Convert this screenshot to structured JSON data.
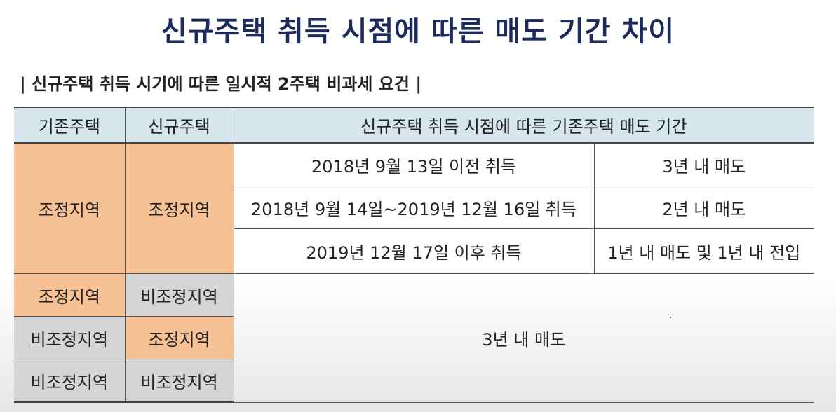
{
  "title": "신규주택 취득 시점에 따른 매도 기간 차이",
  "subtitle": "| 신규주택 취득 시기에 따른 일시적 2주택 비과세 요건 |",
  "table": {
    "headers": [
      "기존주택",
      "신규주택",
      "신규주택 취득 시점에 따른 기존주택 매도 기간"
    ],
    "adjusted_group": {
      "existing": "조정지역",
      "new": "조정지역",
      "rows": [
        {
          "period": "2018년 9월 13일 이전 취득",
          "deadline": "3년 내 매도"
        },
        {
          "period": "2018년 9월 14일~2019년 12월 16일 취득",
          "deadline": "2년 내 매도"
        },
        {
          "period": "2019년 12월 17일 이후 취득",
          "deadline": "1년 내 매도 및 1년 내 전입"
        }
      ]
    },
    "other_rows": [
      {
        "existing": "조정지역",
        "new": "비조정지역"
      },
      {
        "existing": "비조정지역",
        "new": "조정지역"
      },
      {
        "existing": "비조정지역",
        "new": "비조정지역"
      }
    ],
    "other_deadline": "3년 내 매도"
  },
  "colors": {
    "title": "#1c2a5c",
    "header_bg": "#d7e5ec",
    "adjusted_bg": "#f6c195",
    "non_adjusted_bg": "#d5d5d5"
  }
}
